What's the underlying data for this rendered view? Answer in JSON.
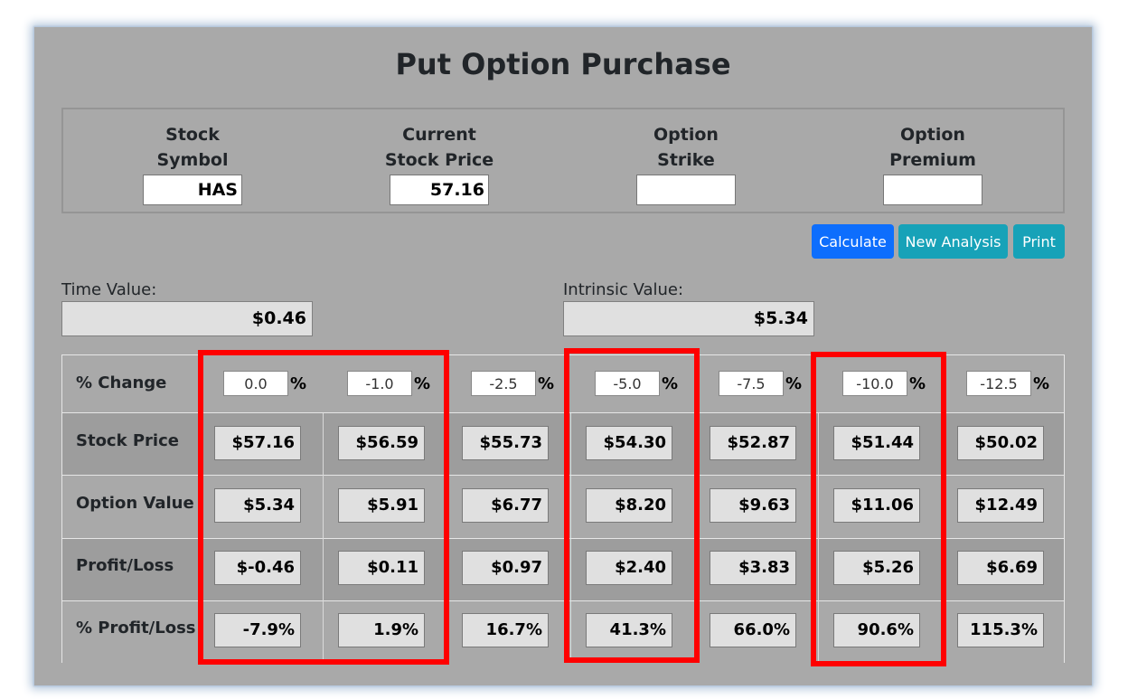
{
  "title": "Put Option Purchase",
  "inputs": [
    {
      "label": "Stock\nSymbol",
      "value": ""
    },
    {
      "label": "Current\nStock Price",
      "value": ""
    },
    {
      "label": "Option\nStrike",
      "value": ""
    },
    {
      "label": "Option\nPremium",
      "value": ""
    }
  ],
  "input_values": [
    "HAS",
    "57.16",
    "",
    ""
  ],
  "buttons": {
    "calculate": "Calculate",
    "new_analysis": "New Analysis",
    "print": "Print"
  },
  "colors": {
    "primary": "#0d6efd",
    "info": "#17a2b8",
    "highlight": "#ff0000"
  },
  "time_value": {
    "label": "Time Value:",
    "value": "$0.46"
  },
  "intrinsic_value": {
    "label": "Intrinsic Value:",
    "value": "$5.34"
  },
  "table": {
    "row_labels": [
      "% Change",
      "Stock Price",
      "Option Value",
      "Profit/Loss",
      "% Profit/Loss"
    ],
    "percent_sign": "%",
    "pct_changes": [
      "0.0",
      "-1.0",
      "-2.5",
      "-5.0",
      "-7.5",
      "-10.0",
      "-12.5"
    ],
    "stock_price": [
      "$57.16",
      "$56.59",
      "$55.73",
      "$54.30",
      "$52.87",
      "$51.44",
      "$50.02"
    ],
    "option_value": [
      "$5.34",
      "$5.91",
      "$6.77",
      "$8.20",
      "$9.63",
      "$11.06",
      "$12.49"
    ],
    "profit_loss": [
      "$-0.46",
      "$0.11",
      "$0.97",
      "$2.40",
      "$3.83",
      "$5.26",
      "$6.69"
    ],
    "pct_profit_loss": [
      "-7.9%",
      "1.9%",
      "16.7%",
      "41.3%",
      "66.0%",
      "90.6%",
      "115.3%"
    ]
  }
}
